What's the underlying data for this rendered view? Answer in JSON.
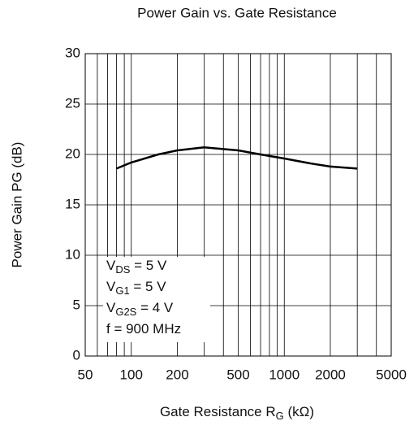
{
  "chart_data": {
    "type": "line",
    "title": "Power Gain vs. Gate Resistance",
    "x_label": {
      "text": "Gate Resistance R",
      "sub": "G",
      "after": " (kΩ)"
    },
    "y_label": "Power Gain PG (dB)",
    "log_x": true,
    "x": [
      80,
      100,
      150,
      200,
      300,
      500,
      700,
      1000,
      1500,
      2000,
      3000
    ],
    "series": [
      {
        "color": "#000000",
        "values": [
          18.6,
          19.2,
          20.0,
          20.4,
          20.7,
          20.4,
          20.0,
          19.6,
          19.1,
          18.8,
          18.6
        ]
      }
    ],
    "xlim": [
      50,
      5000
    ],
    "xticks": [
      50,
      100,
      200,
      500,
      1000,
      2000,
      5000
    ],
    "x_minor_grid": [
      60,
      70,
      80,
      90,
      300,
      400,
      600,
      700,
      800,
      900,
      3000,
      4000
    ],
    "ylim": [
      0,
      30
    ],
    "yticks": [
      0,
      5,
      10,
      15,
      20,
      25,
      30
    ],
    "grid": true,
    "annotations": [
      {
        "text": "V",
        "sub": "DS",
        "after": " = 5 V"
      },
      {
        "text": "V",
        "sub": "G1",
        "after": " = 5 V"
      },
      {
        "text": "V",
        "sub": "G2S",
        "after": " = 4 V"
      },
      {
        "text": "f = 900 MHz"
      }
    ]
  }
}
